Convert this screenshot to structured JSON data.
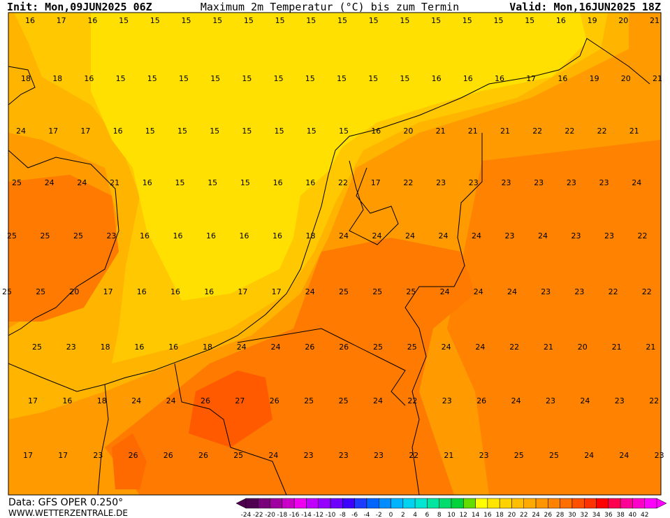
{
  "header": {
    "init": "Init: Mon,09JUN2025 06Z",
    "title": "Maximum 2m Temperatur (°C) bis zum Termin",
    "valid": "Valid: Mon,16JUN2025 18Z"
  },
  "map": {
    "rows": [
      [
        16,
        17,
        16,
        15,
        15,
        15,
        15,
        15,
        15,
        15,
        15,
        15,
        15,
        15,
        15,
        15,
        15,
        16,
        19,
        20,
        21
      ],
      [
        18,
        18,
        16,
        15,
        15,
        15,
        15,
        15,
        15,
        15,
        15,
        15,
        15,
        16,
        16,
        16,
        17,
        16,
        19,
        20,
        21
      ],
      [
        24,
        17,
        17,
        16,
        15,
        15,
        15,
        15,
        15,
        15,
        15,
        16,
        20,
        21,
        21,
        21,
        22,
        22,
        22,
        21
      ],
      [
        25,
        24,
        24,
        21,
        16,
        15,
        15,
        15,
        16,
        16,
        22,
        17,
        22,
        23,
        23,
        23,
        23,
        23,
        23,
        24
      ],
      [
        25,
        25,
        25,
        23,
        16,
        16,
        16,
        16,
        16,
        18,
        24,
        24,
        24,
        24,
        24,
        23,
        24,
        23,
        23,
        22
      ],
      [
        25,
        25,
        20,
        17,
        16,
        16,
        16,
        17,
        17,
        24,
        25,
        25,
        25,
        24,
        24,
        24,
        23,
        23,
        22,
        22
      ],
      [
        25,
        23,
        18,
        16,
        16,
        18,
        24,
        24,
        26,
        26,
        25,
        25,
        24,
        24,
        22,
        21,
        20,
        21,
        21
      ],
      [
        17,
        16,
        18,
        24,
        24,
        26,
        27,
        26,
        25,
        25,
        24,
        22,
        23,
        26,
        24,
        23,
        24,
        23,
        22
      ],
      [
        17,
        17,
        23,
        26,
        26,
        26,
        25,
        24,
        23,
        23,
        23,
        22,
        21,
        23,
        25,
        25,
        24,
        24,
        23
      ]
    ]
  },
  "footer": {
    "data": "Data: GFS OPER 0.250°",
    "site": "WWW.WETTERZENTRALE.DE"
  },
  "colorbar": {
    "ticks": [
      -24,
      -22,
      -20,
      -18,
      -16,
      -14,
      -12,
      -10,
      -8,
      -6,
      -4,
      -2,
      0,
      2,
      4,
      6,
      8,
      10,
      12,
      14,
      16,
      18,
      20,
      22,
      24,
      26,
      28,
      30,
      32,
      34,
      36,
      38,
      40,
      42
    ],
    "colors": [
      "#500050",
      "#780078",
      "#a000a0",
      "#c800c8",
      "#f000f0",
      "#c000ff",
      "#9600ff",
      "#6e00ff",
      "#3c00ff",
      "#1e3cff",
      "#0064ff",
      "#008cff",
      "#00b4ff",
      "#00d2f0",
      "#00e6d2",
      "#00e6a0",
      "#00dc6e",
      "#00d23c",
      "#64dc00",
      "#ffff00",
      "#ffe600",
      "#ffd200",
      "#ffbe00",
      "#ffaa00",
      "#ff9600",
      "#ff8200",
      "#ff6e00",
      "#ff5000",
      "#ff3200",
      "#ff0000",
      "#ff0050",
      "#ff0096",
      "#ff00c8",
      "#ff00ff"
    ]
  }
}
